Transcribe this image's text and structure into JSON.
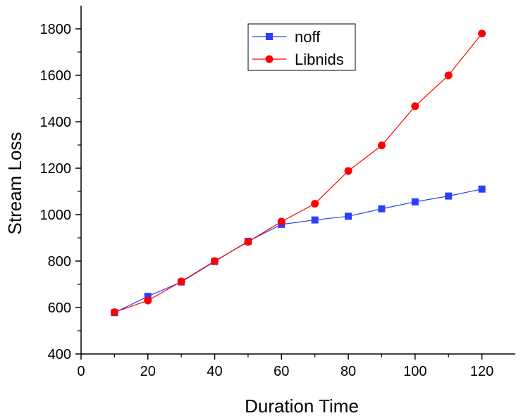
{
  "chart_data": {
    "type": "line",
    "title": "",
    "xlabel": "Duration Time",
    "ylabel": "Stream Loss",
    "xlim": [
      0,
      130
    ],
    "ylim": [
      400,
      1900
    ],
    "x_ticks": [
      0,
      20,
      40,
      60,
      80,
      100,
      120
    ],
    "y_ticks": [
      400,
      600,
      800,
      1000,
      1200,
      1400,
      1600,
      1800
    ],
    "x_tick_labels": [
      "0",
      "20",
      "40",
      "60",
      "80",
      "100",
      "120"
    ],
    "y_tick_labels": [
      "400",
      "600",
      "800",
      "1000",
      "1200",
      "1400",
      "1600",
      "1800"
    ],
    "grid": false,
    "legend_position": "top-center",
    "x": [
      10,
      20,
      30,
      40,
      50,
      60,
      70,
      80,
      90,
      100,
      110,
      120
    ],
    "series": [
      {
        "name": "noff",
        "marker": "square",
        "color": "#2b3fff",
        "values": [
          578,
          648,
          710,
          798,
          885,
          958,
          977,
          993,
          1025,
          1055,
          1080,
          1110
        ]
      },
      {
        "name": "Libnids",
        "marker": "circle",
        "color": "#ff0000",
        "values": [
          580,
          630,
          712,
          800,
          883,
          970,
          1047,
          1188,
          1298,
          1467,
          1600,
          1780
        ]
      }
    ]
  }
}
